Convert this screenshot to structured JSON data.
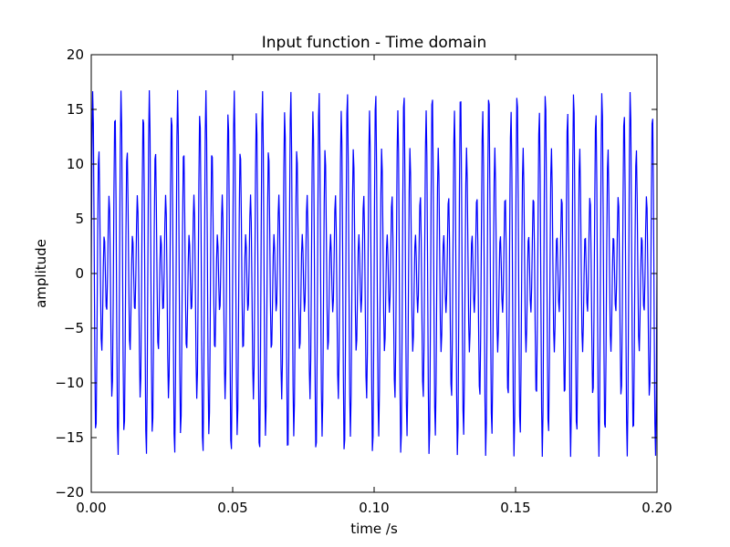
{
  "chart_data": {
    "type": "line",
    "title": "Input function - Time domain",
    "xlabel": "time /s",
    "ylabel": "amplitude",
    "xlim": [
      0.0,
      0.2
    ],
    "ylim": [
      -20,
      20
    ],
    "x_ticks": [
      0.0,
      0.05,
      0.1,
      0.15,
      0.2
    ],
    "x_tick_labels": [
      "0.00",
      "0.05",
      "0.10",
      "0.15",
      "0.20"
    ],
    "y_ticks": [
      -20,
      -15,
      -10,
      -5,
      0,
      5,
      10,
      15,
      20
    ],
    "y_tick_labels": [
      "−20",
      "−15",
      "−10",
      "−5",
      "0",
      "5",
      "10",
      "15",
      "20"
    ],
    "grid": false,
    "sample_count": 800,
    "series": [
      {
        "color": "#0000ff",
        "components": [
          {
            "amplitude": 10,
            "frequency_hz": 500
          },
          {
            "amplitude": 7,
            "frequency_hz": 400
          }
        ]
      }
    ]
  }
}
